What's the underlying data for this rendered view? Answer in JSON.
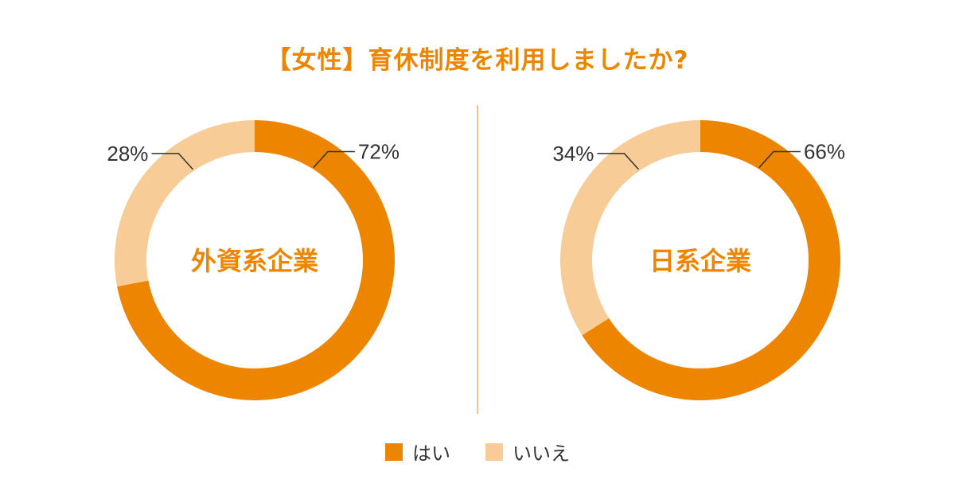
{
  "title": "【女性】育休制度を利用しましたか?",
  "colors": {
    "yes": "#ee8500",
    "no": "#f7cc96",
    "title": "#ee8500",
    "center_label": "#ee8500",
    "value_label": "#333333",
    "divider": "#f0a878"
  },
  "legend": [
    {
      "label": "はい",
      "color_key": "yes"
    },
    {
      "label": "いいえ",
      "color_key": "no"
    }
  ],
  "chart_data": [
    {
      "type": "pie",
      "center_label": "外資系企業",
      "categories": [
        "はい",
        "いいえ"
      ],
      "values": [
        72,
        28
      ],
      "value_labels": [
        "72%",
        "28%"
      ]
    },
    {
      "type": "pie",
      "center_label": "日系企業",
      "categories": [
        "はい",
        "いいえ"
      ],
      "values": [
        66,
        34
      ],
      "value_labels": [
        "66%",
        "34%"
      ]
    }
  ]
}
